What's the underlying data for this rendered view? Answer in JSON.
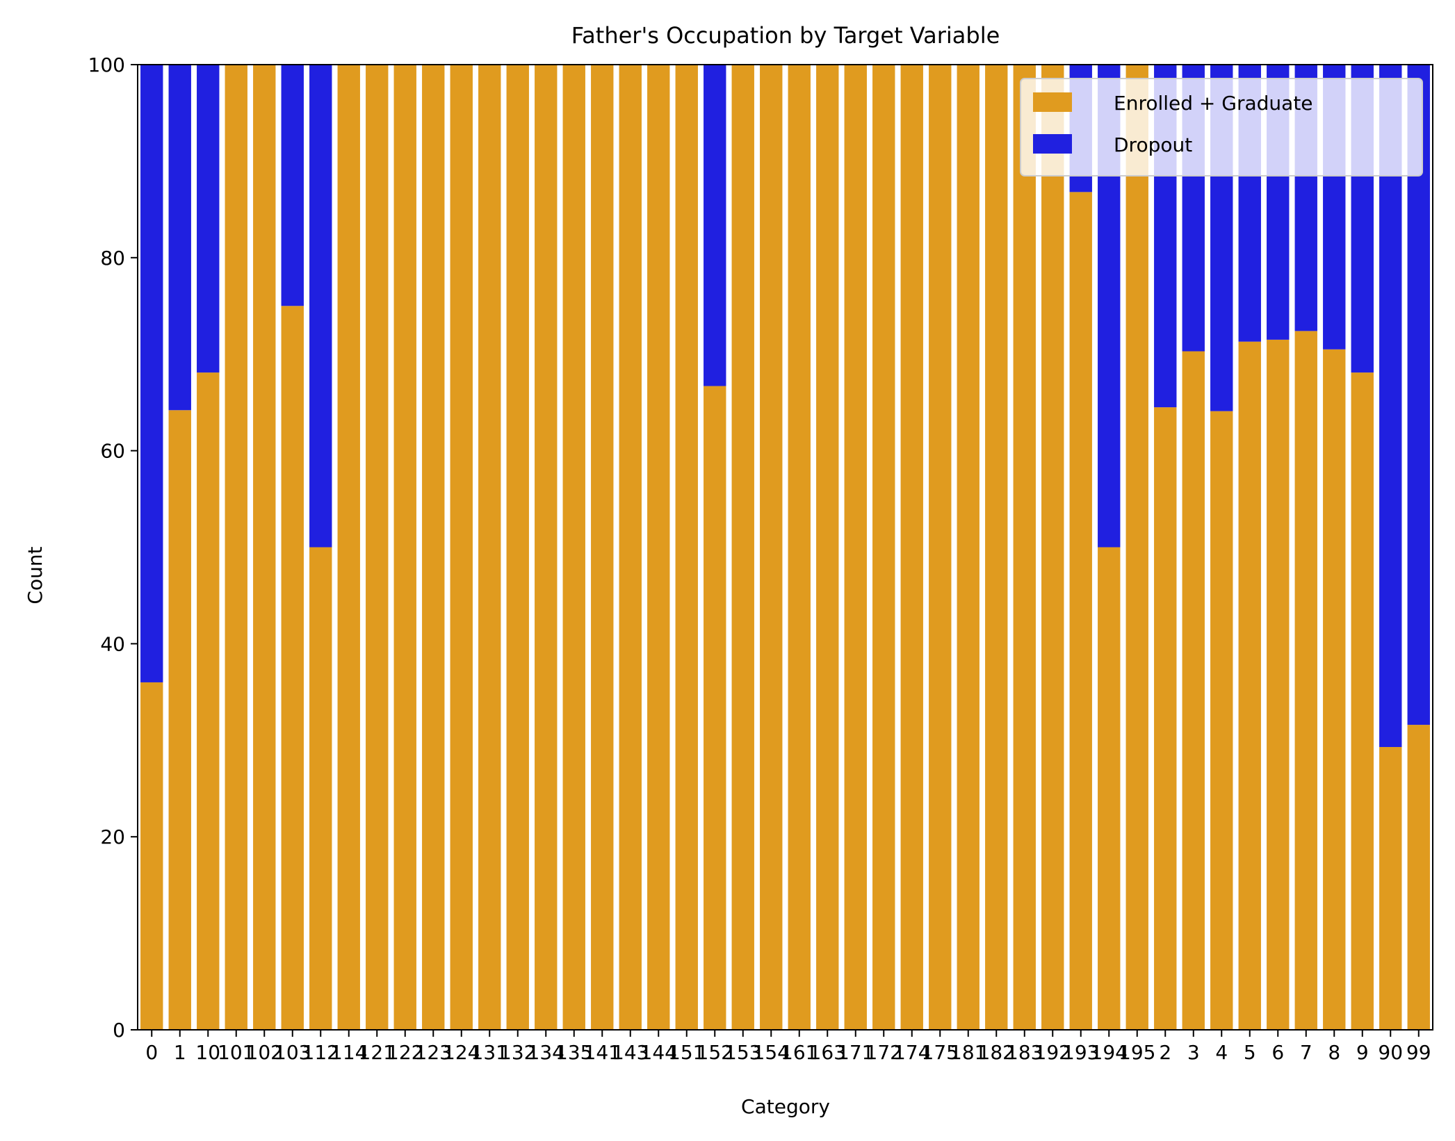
{
  "chart_data": {
    "type": "bar",
    "stacked": true,
    "title": "Father's Occupation by Target Variable",
    "xlabel": "Category",
    "ylabel": "Count",
    "ylim": [
      0,
      100
    ],
    "yticks": [
      0,
      20,
      40,
      60,
      80,
      100
    ],
    "grid": false,
    "legend_position": "top-right",
    "categories": [
      "0",
      "1",
      "10",
      "101",
      "102",
      "103",
      "112",
      "114",
      "121",
      "122",
      "123",
      "124",
      "131",
      "132",
      "134",
      "135",
      "141",
      "143",
      "144",
      "151",
      "152",
      "153",
      "154",
      "161",
      "163",
      "171",
      "172",
      "174",
      "175",
      "181",
      "182",
      "183",
      "192",
      "193",
      "194",
      "195",
      "2",
      "3",
      "4",
      "5",
      "6",
      "7",
      "8",
      "9",
      "90",
      "99"
    ],
    "tick_labels": [
      "0",
      "1",
      "10",
      "101",
      "102",
      "103",
      "112",
      "114",
      "121",
      "122",
      "123",
      "124",
      "131",
      "132",
      "134",
      "135",
      "141",
      "143",
      "144",
      "151",
      "152",
      "153",
      "154",
      "161",
      "163",
      "171",
      "172",
      "174",
      "175",
      "181",
      "182",
      "183",
      "192",
      "193",
      "194",
      "195",
      "2",
      "3",
      "4",
      "5",
      "6",
      "7",
      "8",
      "9",
      "90",
      "99"
    ],
    "series": [
      {
        "name": "Enrolled + Graduate",
        "color": "#e09b1f",
        "values": [
          36,
          64.2,
          68.1,
          100,
          100,
          75,
          50,
          100,
          100,
          100,
          100,
          100,
          100,
          100,
          100,
          100,
          100,
          100,
          100,
          100,
          66.7,
          100,
          100,
          100,
          100,
          100,
          100,
          100,
          100,
          100,
          100,
          100,
          100,
          86.8,
          50,
          100,
          64.5,
          70.3,
          64.1,
          71.3,
          71.5,
          72.4,
          70.5,
          68.1,
          29.3,
          31.6
        ]
      },
      {
        "name": "Dropout",
        "color": "#2020e0",
        "values": [
          64,
          35.8,
          31.9,
          0,
          0,
          25,
          50,
          0,
          0,
          0,
          0,
          0,
          0,
          0,
          0,
          0,
          0,
          0,
          0,
          0,
          33.3,
          0,
          0,
          0,
          0,
          0,
          0,
          0,
          0,
          0,
          0,
          0,
          0,
          13.2,
          50,
          0,
          35.5,
          29.7,
          35.9,
          28.7,
          28.5,
          27.6,
          29.5,
          31.9,
          70.7,
          68.4
        ]
      }
    ]
  }
}
